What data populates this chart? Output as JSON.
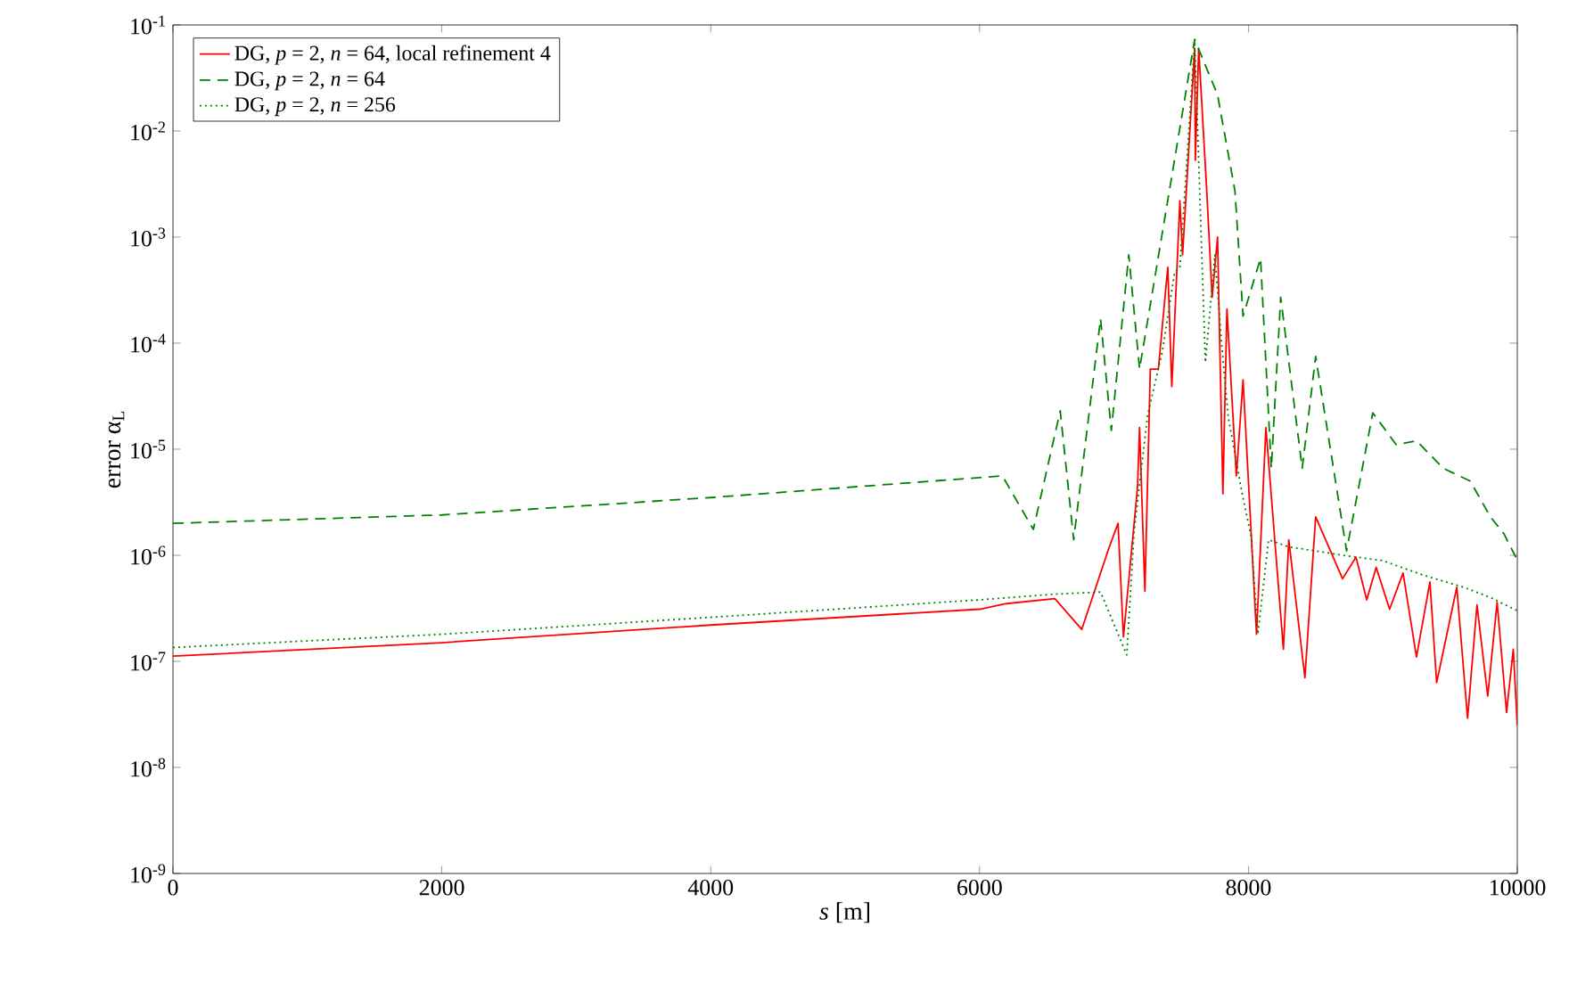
{
  "chart_data": {
    "type": "line",
    "xlabel": "*s* [m]",
    "ylabel": "error α$_{L}$",
    "log": "y",
    "legend": "top left",
    "grid": false,
    "xlim": [
      0,
      10000
    ],
    "xticks": [
      0,
      2000,
      4000,
      6000,
      8000,
      10000
    ],
    "ylim": [
      1e-09,
      0.1
    ],
    "yticks": [
      {
        "value": 1e-09,
        "label": "10$^{-9}$"
      },
      {
        "value": 1e-08,
        "label": "10$^{-8}$"
      },
      {
        "value": 1e-07,
        "label": "10$^{-7}$"
      },
      {
        "value": 1e-06,
        "label": "10$^{-6}$"
      },
      {
        "value": 1e-05,
        "label": "10$^{-5}$"
      },
      {
        "value": 0.0001,
        "label": "10$^{-4}$"
      },
      {
        "value": 0.001,
        "label": "10$^{-3}$"
      },
      {
        "value": 0.01,
        "label": "10$^{-2}$"
      },
      {
        "value": 0.1,
        "label": "10$^{-1}$"
      }
    ],
    "series": [
      {
        "name": "DG, *p* = 2, *n* = 64, local refinement 4",
        "color": "#ff0000",
        "line_style": "solid",
        "x": [
          0,
          2000,
          4000,
          6000,
          6200,
          6560,
          6760,
          6960,
          7030,
          7070,
          7175,
          7190,
          7230,
          7270,
          7330,
          7400,
          7430,
          7490,
          7510,
          7600,
          7605,
          7630,
          7690,
          7730,
          7770,
          7810,
          7840,
          7910,
          7960,
          8060,
          8130,
          8260,
          8300,
          8420,
          8500,
          8700,
          8800,
          8880,
          8950,
          9050,
          9150,
          9250,
          9350,
          9400,
          9550,
          9630,
          9700,
          9780,
          9850,
          9920,
          9970,
          10000
        ],
        "values": [
          1.12e-07,
          1.5e-07,
          2.2e-07,
          3.1e-07,
          3.5e-07,
          3.9e-07,
          2e-07,
          1.15e-06,
          2e-06,
          1.7e-07,
          4.4e-06,
          1.6e-05,
          4.6e-07,
          5.7e-05,
          5.7e-05,
          0.00052,
          3.9e-05,
          0.0022,
          0.00068,
          0.06,
          0.0053,
          0.06,
          0.0027,
          0.00027,
          0.001,
          3.8e-06,
          0.00021,
          5.6e-06,
          4.5e-05,
          1.8e-07,
          1.6e-05,
          1.3e-07,
          1.4e-06,
          7e-08,
          2.3e-06,
          6e-07,
          9.6e-07,
          3.8e-07,
          7.7e-07,
          3.1e-07,
          6.8e-07,
          1.1e-07,
          5.6e-07,
          6.3e-08,
          5e-07,
          2.9e-08,
          3.4e-07,
          4.7e-08,
          3.6e-07,
          3.3e-08,
          1.3e-07,
          2.5e-08
        ]
      },
      {
        "name": "DG, *p* = 2, *n* = 64",
        "color": "#008000",
        "line_style": "dashed",
        "x": [
          0,
          2000,
          4000,
          6000,
          6170,
          6400,
          6600,
          6700,
          6900,
          6980,
          7110,
          7190,
          7600,
          7770,
          7900,
          7960,
          8090,
          8170,
          8240,
          8400,
          8500,
          8730,
          8925,
          9100,
          9250,
          9450,
          9650,
          9800,
          9900,
          10000
        ],
        "values": [
          2e-06,
          2.4e-06,
          3.5e-06,
          5.4e-06,
          5.6e-06,
          1.75e-06,
          2.3e-05,
          1.4e-06,
          0.00017,
          1.5e-05,
          0.00068,
          5.7e-05,
          0.073,
          0.022,
          0.0027,
          0.00018,
          0.00063,
          6.6e-06,
          0.00027,
          6.6e-06,
          7.5e-05,
          1.1e-06,
          2.2e-05,
          1.1e-05,
          1.2e-05,
          6.6e-06,
          5e-06,
          2.3e-06,
          1.6e-06,
          9e-07
        ]
      },
      {
        "name": "DG, *p* = 2, *n* = 256",
        "color": "#008000",
        "line_style": "dotted",
        "x": [
          0,
          2000,
          4000,
          6000,
          6560,
          6900,
          7095,
          7150,
          7250,
          7360,
          7450,
          7490,
          7600,
          7680,
          7750,
          7800,
          7850,
          7950,
          8020,
          8070,
          8150,
          8300,
          8500,
          8700,
          9000,
          9300,
          9600,
          9800,
          10000
        ],
        "values": [
          1.35e-07,
          1.8e-07,
          2.6e-07,
          3.8e-07,
          4.3e-07,
          4.5e-07,
          1.15e-07,
          1.7e-06,
          2.1e-05,
          8.4e-05,
          0.00046,
          0.00052,
          0.07,
          6.6e-05,
          0.00068,
          0.0001,
          2e-05,
          4e-06,
          1.5e-06,
          1.8e-07,
          1.4e-06,
          1.2e-06,
          1.1e-06,
          1e-06,
          8.9e-07,
          6.5e-07,
          5e-07,
          4e-07,
          3e-07
        ]
      }
    ]
  }
}
